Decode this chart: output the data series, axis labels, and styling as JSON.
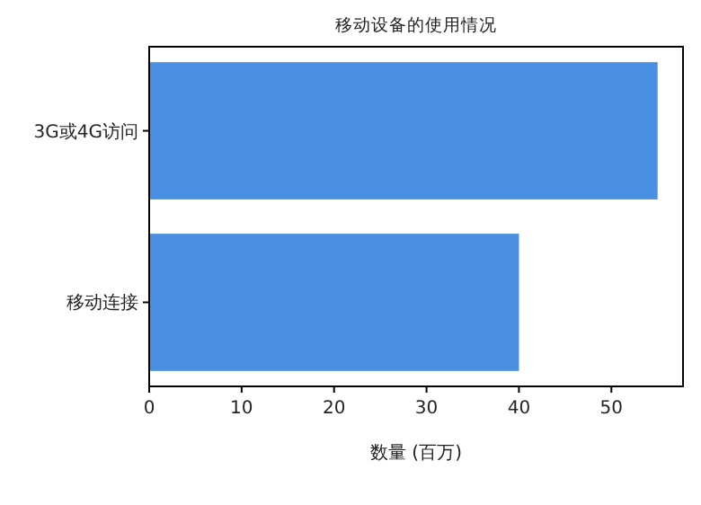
{
  "chart_data": {
    "type": "bar",
    "orientation": "horizontal",
    "title": "移动设备的使用情况",
    "xlabel": "数量 (百万)",
    "categories": [
      "3G或4G访问",
      "移动连接"
    ],
    "values": [
      55,
      40
    ],
    "color": "#4a90e2",
    "xlim": [
      0,
      57.75
    ],
    "xticks": [
      0,
      10,
      20,
      30,
      40,
      50
    ]
  }
}
